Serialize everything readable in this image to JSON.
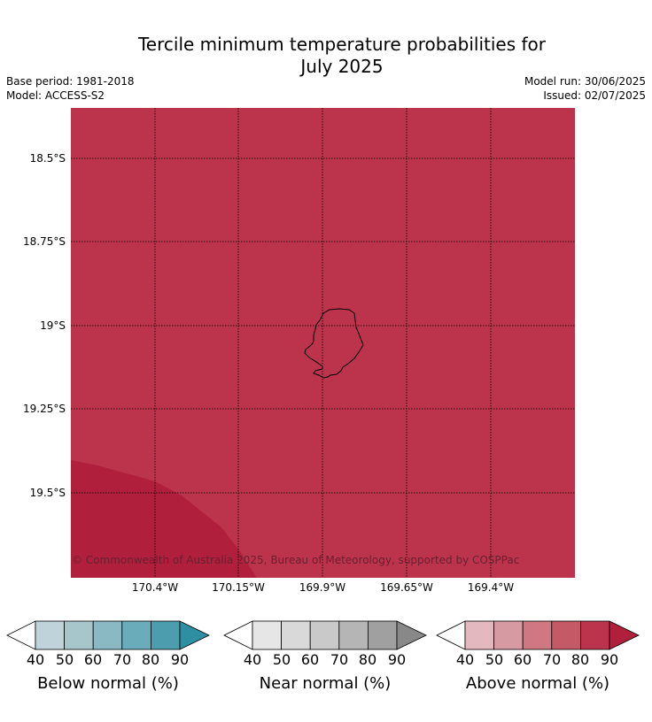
{
  "title": {
    "line1": "Tercile minimum temperature probabilities for",
    "line2": "July 2025"
  },
  "meta": {
    "base_period": "Base period: 1981-2018",
    "model": "Model: ACCESS-S2",
    "model_run": "Model run: 30/06/2025",
    "issued": "Issued: 02/07/2025"
  },
  "map": {
    "latitude_labels": [
      "18.5°S",
      "18.75°S",
      "19°S",
      "19.25°S",
      "19.5°S"
    ],
    "longitude_labels": [
      "170.4°W",
      "170.15°W",
      "169.9°W",
      "169.65°W",
      "169.4°W"
    ],
    "copyright": "© Commonwealth of Australia 2025, Bureau of Meteorology, supported by COSPPac",
    "colors": {
      "above_80_90": "#bc344b",
      "above_90_plus": "#b01f3b",
      "land_outline": "#000000",
      "gridline": "#000000"
    }
  },
  "colorbars": [
    {
      "label": "Below normal (%)",
      "ticks": [
        "40",
        "50",
        "60",
        "70",
        "80",
        "90"
      ],
      "colors": [
        "#ffffff",
        "#bfd4da",
        "#a6c6cb",
        "#8ab9c4",
        "#6aacba",
        "#4c9eae",
        "#2e8fa3"
      ]
    },
    {
      "label": "Near normal (%)",
      "ticks": [
        "40",
        "50",
        "60",
        "70",
        "80",
        "90"
      ],
      "colors": [
        "#ffffff",
        "#e6e6e6",
        "#d9d9d9",
        "#c9c9c9",
        "#b5b5b5",
        "#a0a0a0",
        "#888888"
      ]
    },
    {
      "label": "Above normal (%)",
      "ticks": [
        "40",
        "50",
        "60",
        "70",
        "80",
        "90"
      ],
      "colors": [
        "#ffffff",
        "#e3b8bf",
        "#d69aa3",
        "#cf7782",
        "#c45a66",
        "#bc344b",
        "#b01f3b"
      ]
    }
  ]
}
